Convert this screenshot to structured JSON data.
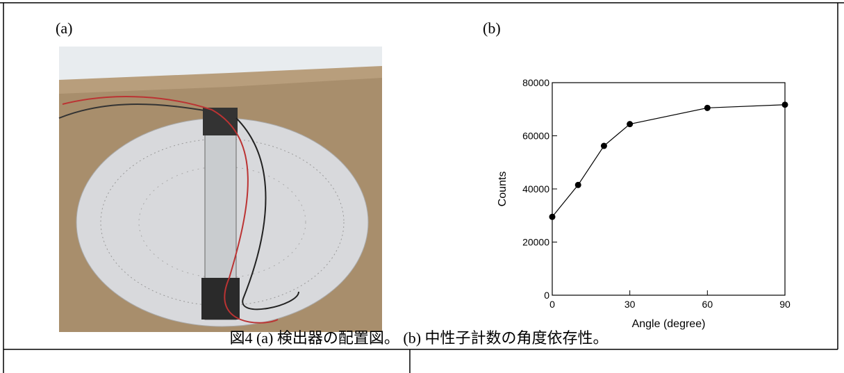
{
  "labels": {
    "a": "(a)",
    "b": "(b)"
  },
  "caption": "図4 (a) 検出器の配置図。 (b) 中性子計数の角度依存性。",
  "chart_data": {
    "type": "line",
    "x_label": "Angle (degree)",
    "y_label": "Counts",
    "x": [
      0,
      10,
      20,
      30,
      60,
      90
    ],
    "series": [
      {
        "name": "Counts",
        "color": "#000000",
        "values": [
          29500,
          41500,
          56200,
          64400,
          70500,
          71700
        ]
      }
    ],
    "xlim": [
      0,
      90
    ],
    "xticks": [
      0,
      30,
      60,
      90
    ],
    "ylim": [
      0,
      80000
    ],
    "yticks": [
      0,
      20000,
      40000,
      60000,
      80000
    ]
  }
}
